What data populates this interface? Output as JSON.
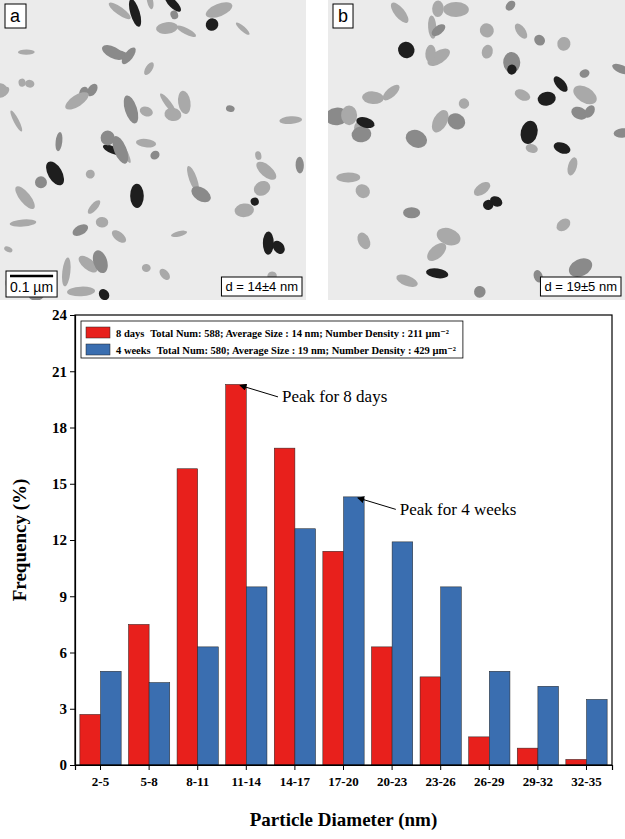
{
  "images": [
    {
      "label": "a",
      "scale_bar": "0.1 µm",
      "caption": "d = 14±4 nm"
    },
    {
      "label": "b",
      "caption": "d = 19±5 nm"
    }
  ],
  "chart_data": {
    "type": "bar",
    "x_label": "Particle Diameter (nm)",
    "y_label": "Frequency (%)",
    "categories": [
      "2-5",
      "5-8",
      "8-11",
      "11-14",
      "14-17",
      "17-20",
      "20-23",
      "23-26",
      "26-29",
      "29-32",
      "32-35"
    ],
    "series": [
      {
        "name": "8 days",
        "details": "Total Num: 588; Average Size : 14 nm; Number Density : 211 µm⁻²",
        "color": "#e8201c",
        "values": [
          2.7,
          7.5,
          15.8,
          20.3,
          16.9,
          11.4,
          6.3,
          4.7,
          1.5,
          0.9,
          0.3
        ]
      },
      {
        "name": "4 weeks",
        "details": "Total Num: 580; Average Size : 19 nm; Number Density : 429 µm⁻²",
        "color": "#3a6eb0",
        "values": [
          5.0,
          4.4,
          6.3,
          9.5,
          12.6,
          14.3,
          11.9,
          9.5,
          5.0,
          4.2,
          3.5
        ]
      }
    ],
    "annotations": [
      {
        "text": "Peak for 8 days",
        "x": "11-14",
        "series": "8 days"
      },
      {
        "text": "Peak for 4 weeks",
        "x": "17-20",
        "series": "4 weeks"
      }
    ],
    "ylim": [
      0,
      24
    ],
    "yticks": [
      0,
      3,
      6,
      9,
      12,
      15,
      18,
      21,
      24
    ],
    "grid": false,
    "legend": "upper left"
  }
}
